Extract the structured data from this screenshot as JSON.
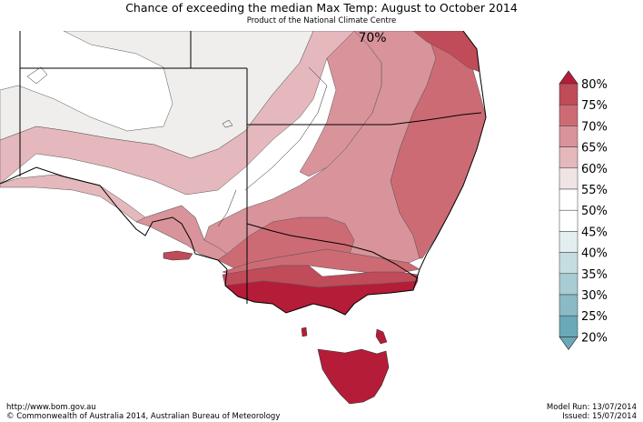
{
  "title": "Chance of exceeding the median Max Temp: August to October 2014",
  "subtitle": "Product of the National Climate Centre",
  "map": {
    "contour_label": "70%",
    "zones": [
      {
        "id": "lt-55",
        "color": "#efeeec"
      },
      {
        "id": "60-65",
        "color": "#e4b8bc"
      },
      {
        "id": "65-70",
        "color": "#d9939b"
      },
      {
        "id": "70-75",
        "color": "#cd6b74"
      },
      {
        "id": "75-80",
        "color": "#c04b59"
      },
      {
        "id": "gt-80",
        "color": "#b51c38"
      }
    ]
  },
  "legend": {
    "labels": [
      "80%",
      "75%",
      "70%",
      "65%",
      "60%",
      "55%",
      "50%",
      "45%",
      "40%",
      "35%",
      "30%",
      "25%",
      "20%"
    ],
    "colors": [
      "#c04b59",
      "#cd6b74",
      "#d9939b",
      "#e4b8bc",
      "#f1e4e5",
      "#ffffff",
      "#ffffff",
      "#e3eef0",
      "#c5dde1",
      "#a8ccd3",
      "#89bac5",
      "#69a9b8"
    ],
    "top_arrow_color": "#b51c38",
    "bottom_arrow_color": "#69a9b8"
  },
  "footer": {
    "url": "http://www.bom.gov.au",
    "copyright": "©  Commonwealth of Australia 2014, Australian Bureau of Meteorology",
    "model_run": "Model Run: 13/07/2014",
    "issued": "Issued: 15/07/2014"
  }
}
